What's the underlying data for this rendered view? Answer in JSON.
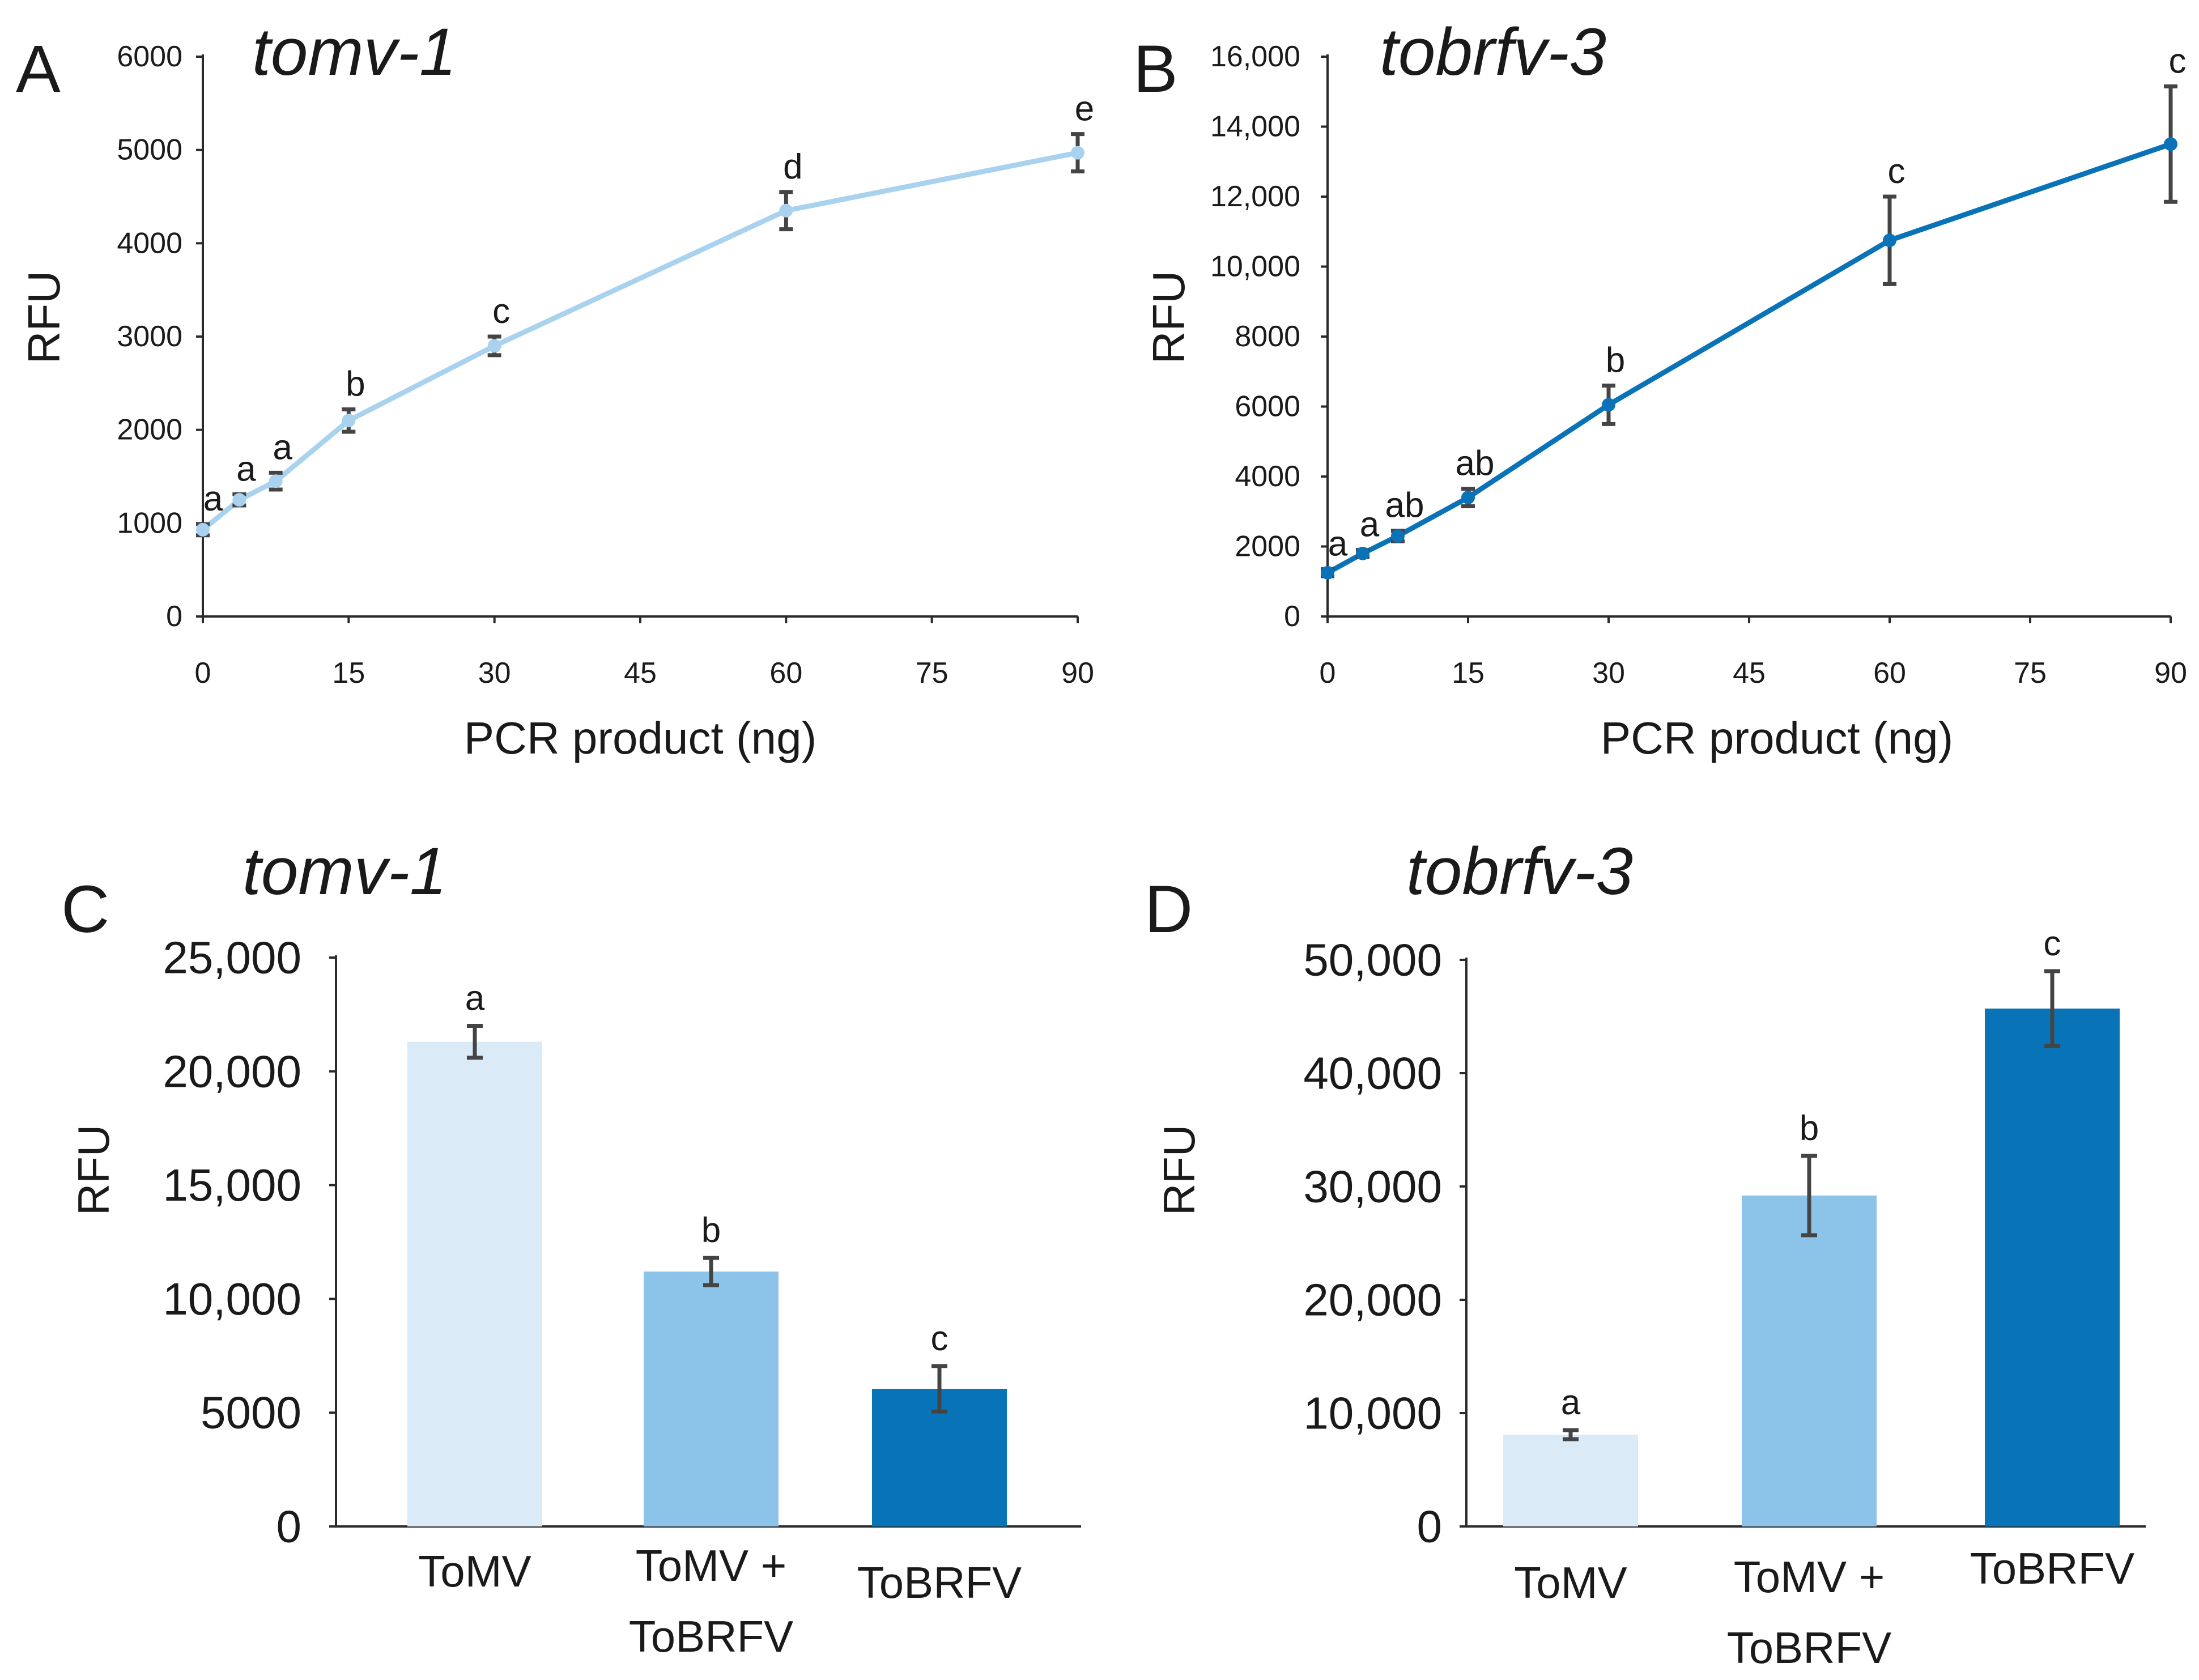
{
  "chart_data": [
    {
      "panel": "A",
      "type": "line",
      "title": "tomv-1",
      "xlabel": "PCR product (ng)",
      "ylabel": "RFU",
      "xlim": [
        0,
        90
      ],
      "ylim": [
        0,
        6000
      ],
      "xticks": [
        0,
        15,
        30,
        45,
        60,
        75,
        90
      ],
      "yticks": [
        0,
        1000,
        2000,
        3000,
        4000,
        5000,
        6000
      ],
      "ytick_labels": [
        "0",
        "1000",
        "2000",
        "3000",
        "4000",
        "5000",
        "6000"
      ],
      "color": "#a9d2ef",
      "x": [
        0,
        3.75,
        7.5,
        15,
        30,
        60,
        90
      ],
      "y": [
        930,
        1250,
        1450,
        2100,
        2900,
        4350,
        4970
      ],
      "err": [
        60,
        60,
        90,
        120,
        100,
        200,
        200
      ],
      "labels": [
        "a",
        "a",
        "a",
        "b",
        "c",
        "d",
        "e"
      ]
    },
    {
      "panel": "B",
      "type": "line",
      "title": "tobrfv-3",
      "xlabel": "PCR product (ng)",
      "ylabel": "RFU",
      "xlim": [
        0,
        90
      ],
      "ylim": [
        0,
        16000
      ],
      "xticks": [
        0,
        15,
        30,
        45,
        60,
        75,
        90
      ],
      "yticks": [
        0,
        2000,
        4000,
        6000,
        8000,
        10000,
        12000,
        14000,
        16000
      ],
      "ytick_labels": [
        "0",
        "2000",
        "4000",
        "6000",
        "8000",
        "10,000",
        "12,000",
        "14,000",
        "16,000"
      ],
      "color": "#0a73b8",
      "x": [
        0,
        3.75,
        7.5,
        15,
        30,
        60,
        90
      ],
      "y": [
        1250,
        1800,
        2300,
        3400,
        6050,
        10750,
        13500
      ],
      "err": [
        100,
        100,
        150,
        250,
        550,
        1250,
        1650
      ],
      "labels": [
        "a",
        "a",
        "ab",
        "ab",
        "b",
        "c",
        "c"
      ]
    },
    {
      "panel": "C",
      "type": "bar",
      "title": "tomv-1",
      "xlabel": "",
      "ylabel": "RFU",
      "ylim": [
        0,
        25000
      ],
      "yticks": [
        0,
        5000,
        10000,
        15000,
        20000,
        25000
      ],
      "ytick_labels": [
        "0",
        "5000",
        "10,000",
        "15,000",
        "20,000",
        "25,000"
      ],
      "categories": [
        [
          "ToMV"
        ],
        [
          "ToMV +",
          "ToBRFV"
        ],
        [
          "ToBRFV"
        ]
      ],
      "values": [
        21300,
        11200,
        6050
      ],
      "err": [
        700,
        600,
        1000
      ],
      "colors": [
        "#daeaf7",
        "#8cc3e8",
        "#0873b6"
      ],
      "labels": [
        "a",
        "b",
        "c"
      ]
    },
    {
      "panel": "D",
      "type": "bar",
      "title": "tobrfv-3",
      "xlabel": "",
      "ylabel": "RFU",
      "ylim": [
        0,
        50000
      ],
      "yticks": [
        0,
        10000,
        20000,
        30000,
        40000,
        50000
      ],
      "ytick_labels": [
        "0",
        "10,000",
        "20,000",
        "30,000",
        "40,000",
        "50,000"
      ],
      "categories": [
        [
          "ToMV"
        ],
        [
          "ToMV +",
          "ToBRFV"
        ],
        [
          "ToBRFV"
        ]
      ],
      "values": [
        8100,
        29200,
        45700
      ],
      "err": [
        400,
        3500,
        3300
      ],
      "colors": [
        "#daeaf7",
        "#8cc3e8",
        "#0873b6"
      ],
      "labels": [
        "a",
        "b",
        "c"
      ]
    }
  ]
}
